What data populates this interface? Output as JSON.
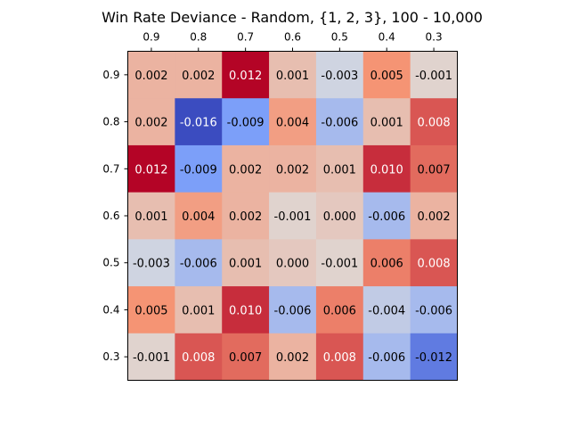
{
  "chart_data": {
    "type": "heatmap",
    "title": "Win Rate Deviance - Random, {1, 2, 3}, 100 - 10,000",
    "x_tick_labels": [
      "0.9",
      "0.8",
      "0.7",
      "0.6",
      "0.5",
      "0.4",
      "0.3"
    ],
    "y_tick_labels": [
      "0.9",
      "0.8",
      "0.7",
      "0.6",
      "0.5",
      "0.4",
      "0.3"
    ],
    "x_axis_position": "top",
    "colormap": "coolwarm",
    "value_range": [
      -0.016,
      0.012
    ],
    "grid": false,
    "values": [
      [
        0.002,
        0.002,
        0.012,
        0.001,
        -0.003,
        0.005,
        -0.001
      ],
      [
        0.002,
        -0.016,
        -0.009,
        0.004,
        -0.006,
        0.001,
        0.008
      ],
      [
        0.012,
        -0.009,
        0.002,
        0.002,
        0.001,
        0.01,
        0.007
      ],
      [
        0.001,
        0.004,
        0.002,
        -0.001,
        0.0,
        -0.006,
        0.002
      ],
      [
        -0.003,
        -0.006,
        0.001,
        0.0,
        -0.001,
        0.006,
        0.008
      ],
      [
        0.005,
        0.001,
        0.01,
        -0.006,
        0.006,
        -0.004,
        -0.006
      ],
      [
        -0.001,
        0.008,
        0.007,
        0.002,
        0.008,
        -0.006,
        -0.012
      ]
    ],
    "cell_labels": [
      [
        "0.002",
        "0.002",
        "0.012",
        "0.001",
        "-0.003",
        "0.005",
        "-0.001"
      ],
      [
        "0.002",
        "-0.016",
        "-0.009",
        "0.004",
        "-0.006",
        "0.001",
        "0.008"
      ],
      [
        "0.012",
        "-0.009",
        "0.002",
        "0.002",
        "0.001",
        "0.010",
        "0.007"
      ],
      [
        "0.001",
        "0.004",
        "0.002",
        "-0.001",
        "0.000",
        "-0.006",
        "0.002"
      ],
      [
        "-0.003",
        "-0.006",
        "0.001",
        "0.000",
        "-0.001",
        "0.006",
        "0.008"
      ],
      [
        "0.005",
        "0.001",
        "0.010",
        "-0.006",
        "0.006",
        "-0.004",
        "-0.006"
      ],
      [
        "-0.001",
        "0.008",
        "0.007",
        "0.002",
        "0.008",
        "-0.006",
        "-0.012"
      ]
    ]
  }
}
